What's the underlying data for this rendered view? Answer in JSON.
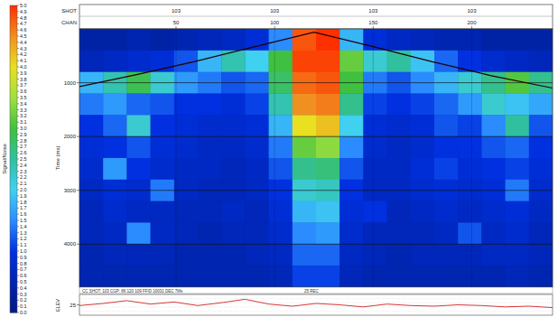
{
  "chart_data": {
    "type": "heatmap",
    "y_label": "Time (ms)",
    "colorbar_label": "Signal/Noise",
    "colorbar": {
      "range": [
        0,
        5
      ],
      "ticks": [
        {
          "value": 0,
          "label": "0.0"
        },
        0.1,
        0.2,
        0.3,
        0.4,
        0.5,
        0.6,
        0.7,
        0.8,
        0.9,
        {
          "value": 1,
          "label": "1.0"
        },
        1.1,
        1.2,
        1.3,
        1.4,
        1.5,
        1.6,
        1.7,
        1.8,
        1.9,
        {
          "value": 2,
          "label": "2.0"
        },
        2.1,
        2.2,
        2.3,
        2.4,
        2.5,
        2.6,
        2.7,
        2.8,
        2.9,
        {
          "value": 3,
          "label": "3.0"
        },
        3.1,
        3.2,
        3.3,
        3.4,
        3.5,
        3.6,
        3.7,
        3.8,
        3.9,
        {
          "value": 4,
          "label": "4.0"
        },
        4.1,
        4.2,
        4.3,
        4.4,
        4.5,
        4.6,
        4.7,
        4.8,
        4.9,
        {
          "value": 5,
          "label": "5.0"
        }
      ]
    },
    "header_labels": [
      "SHOT",
      "CHAN"
    ],
    "shot_labels": [
      "103",
      "103",
      "103",
      "103"
    ],
    "xlim": [
      1,
      241
    ],
    "xticks": [
      50,
      100,
      150,
      200
    ],
    "ylim": [
      0,
      4800
    ],
    "yticks": [
      1000,
      2000,
      3000,
      4000
    ],
    "grid": true,
    "x_edges": [
      1,
      13,
      25,
      37,
      49,
      61,
      73,
      85,
      97,
      109,
      121,
      133,
      145,
      157,
      169,
      181,
      193,
      205,
      217,
      229,
      241
    ],
    "y_edges": [
      0,
      400,
      800,
      1200,
      1600,
      2000,
      2400,
      2800,
      3200,
      3600,
      4000,
      4400,
      4800
    ],
    "cells": [
      [
        0.4,
        0.4,
        0.5,
        0.4,
        0.5,
        0.6,
        0.7,
        0.9,
        1.5,
        4.8,
        5.0,
        1.8,
        0.9,
        0.7,
        0.6,
        0.5,
        0.5,
        0.4,
        0.4,
        0.4
      ],
      [
        0.6,
        0.7,
        0.8,
        0.9,
        1.2,
        1.8,
        2.4,
        2.0,
        3.0,
        4.9,
        4.9,
        3.2,
        2.2,
        2.5,
        1.9,
        1.3,
        1.0,
        0.8,
        0.7,
        0.6
      ],
      [
        1.8,
        2.4,
        2.9,
        2.2,
        1.6,
        1.4,
        1.2,
        1.3,
        2.8,
        4.7,
        4.8,
        3.0,
        1.4,
        1.2,
        1.5,
        1.8,
        2.2,
        2.6,
        3.1,
        2.6
      ],
      [
        1.4,
        1.6,
        1.3,
        1.2,
        1.0,
        1.0,
        0.9,
        1.1,
        2.4,
        4.5,
        4.6,
        2.6,
        1.1,
        1.0,
        1.1,
        1.3,
        1.6,
        2.2,
        1.9,
        1.7
      ],
      [
        1.0,
        1.3,
        2.2,
        1.0,
        0.9,
        0.8,
        0.8,
        0.9,
        1.8,
        4.0,
        4.2,
        2.0,
        0.9,
        0.8,
        0.9,
        1.2,
        1.1,
        1.5,
        2.5,
        1.2
      ],
      [
        0.9,
        1.0,
        1.2,
        0.9,
        0.8,
        0.7,
        0.7,
        0.8,
        1.4,
        3.2,
        3.4,
        1.5,
        0.8,
        0.7,
        0.8,
        1.0,
        1.0,
        1.2,
        1.3,
        1.0
      ],
      [
        0.8,
        1.6,
        1.0,
        0.8,
        0.7,
        0.7,
        0.6,
        0.7,
        1.2,
        2.6,
        2.7,
        1.2,
        0.7,
        0.7,
        0.9,
        1.1,
        0.9,
        1.0,
        1.1,
        0.9
      ],
      [
        0.7,
        0.9,
        0.8,
        1.4,
        0.7,
        0.6,
        0.6,
        0.7,
        1.0,
        2.2,
        2.3,
        1.0,
        0.7,
        0.7,
        0.8,
        0.9,
        0.8,
        0.9,
        1.4,
        0.8
      ],
      [
        0.6,
        0.8,
        0.7,
        0.7,
        0.6,
        0.6,
        0.7,
        0.6,
        0.9,
        1.8,
        1.9,
        0.9,
        1.0,
        0.6,
        0.7,
        0.8,
        0.7,
        0.8,
        0.9,
        0.7
      ],
      [
        0.6,
        0.7,
        1.5,
        0.7,
        0.6,
        0.5,
        0.6,
        0.6,
        0.8,
        1.5,
        1.6,
        0.8,
        0.6,
        0.6,
        0.6,
        0.7,
        1.2,
        0.7,
        0.8,
        0.6
      ],
      [
        0.5,
        0.6,
        0.6,
        0.6,
        0.5,
        0.5,
        0.5,
        0.6,
        0.7,
        1.3,
        1.3,
        0.7,
        0.6,
        0.5,
        0.6,
        0.6,
        0.6,
        0.7,
        0.7,
        0.6
      ],
      [
        0.5,
        0.5,
        0.5,
        0.5,
        0.5,
        0.5,
        0.5,
        0.5,
        0.6,
        1.1,
        1.1,
        0.6,
        0.5,
        0.5,
        0.5,
        0.5,
        0.5,
        0.5,
        0.6,
        0.5
      ]
    ],
    "first_breaks": {
      "x": [
        1,
        30,
        60,
        90,
        120,
        150,
        180,
        210,
        241
      ],
      "values": [
        1070,
        850,
        600,
        330,
        60,
        330,
        610,
        870,
        1100
      ]
    },
    "info_text": "CC SHOT: 103  CGP: 86  120  109  FFID 10031  DEC 7Ms",
    "footer_label": "25 REC",
    "elevation": {
      "label": "ELEV",
      "ylim": [
        10,
        40
      ],
      "yticks": [
        25
      ],
      "x": [
        1,
        13,
        25,
        37,
        49,
        61,
        73,
        85,
        97,
        109,
        121,
        133,
        145,
        157,
        169,
        181,
        193,
        205,
        217,
        229,
        241
      ],
      "values": [
        24,
        27,
        31,
        26,
        29,
        24,
        28,
        33,
        26,
        23,
        27,
        25,
        22,
        26,
        24,
        23,
        25,
        24,
        22,
        23,
        21
      ]
    }
  }
}
